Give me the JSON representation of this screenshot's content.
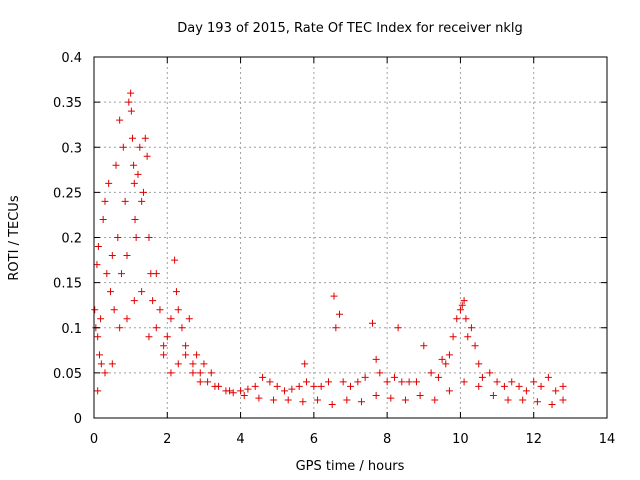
{
  "chart_data": {
    "type": "scatter",
    "title": "Day 193 of 2015, Rate Of TEC Index for receiver nklg",
    "xlabel": "GPS time / hours",
    "ylabel": "ROTI / TECUs",
    "xlim": [
      0,
      14
    ],
    "ylim": [
      0,
      0.4
    ],
    "x_ticks": [
      0,
      2,
      4,
      6,
      8,
      10,
      12,
      14
    ],
    "x_tick_labels": [
      "0",
      "2",
      "4",
      "6",
      "8",
      "10",
      "12",
      "14"
    ],
    "y_ticks": [
      0,
      0.05,
      0.1,
      0.15,
      0.2,
      0.25,
      0.3,
      0.35,
      0.4
    ],
    "y_tick_labels": [
      "0",
      "0.05",
      "0.1",
      "0.15",
      "0.2",
      "0.25",
      "0.3",
      "0.35",
      "0.4"
    ],
    "grid": true,
    "marker": "plus",
    "color": "#e00000",
    "series": [
      {
        "name": "ROTI",
        "x": [
          0.02,
          0.05,
          0.08,
          0.1,
          0.12,
          0.15,
          0.18,
          0.2,
          0.25,
          0.3,
          0.35,
          0.4,
          0.45,
          0.5,
          0.55,
          0.6,
          0.65,
          0.7,
          0.75,
          0.8,
          0.85,
          0.9,
          0.95,
          1.0,
          1.02,
          1.05,
          1.08,
          1.1,
          1.12,
          1.15,
          1.2,
          1.25,
          1.3,
          1.35,
          1.4,
          1.45,
          1.5,
          1.55,
          1.6,
          1.7,
          1.8,
          1.9,
          2.0,
          2.1,
          2.2,
          2.25,
          2.3,
          2.4,
          2.5,
          2.6,
          2.7,
          2.8,
          2.9,
          3.0,
          3.1,
          3.2,
          3.4,
          3.6,
          3.8,
          4.0,
          4.2,
          4.4,
          4.6,
          4.8,
          5.0,
          5.2,
          5.4,
          5.6,
          5.75,
          5.8,
          6.0,
          6.2,
          6.4,
          6.55,
          6.6,
          6.7,
          6.8,
          7.0,
          7.2,
          7.4,
          7.6,
          7.7,
          7.8,
          8.0,
          8.2,
          8.3,
          8.4,
          8.6,
          8.8,
          9.0,
          9.2,
          9.4,
          9.5,
          9.6,
          9.7,
          9.8,
          9.9,
          10.0,
          10.05,
          10.1,
          10.15,
          10.2,
          10.3,
          10.4,
          10.5,
          10.6,
          10.8,
          11.0,
          11.2,
          11.4,
          11.6,
          11.8,
          12.0,
          12.2,
          12.4,
          12.6,
          12.8,
          0.1,
          0.3,
          0.5,
          0.7,
          0.9,
          1.1,
          1.3,
          1.5,
          1.7,
          1.9,
          2.1,
          2.3,
          2.5,
          2.7,
          2.9,
          3.3,
          3.7,
          4.1,
          4.5,
          4.9,
          5.3,
          5.7,
          6.1,
          6.5,
          6.9,
          7.3,
          7.7,
          8.1,
          8.5,
          8.9,
          9.3,
          9.7,
          10.1,
          10.5,
          10.9,
          11.3,
          11.7,
          12.1,
          12.5,
          12.8
        ],
        "y": [
          0.12,
          0.1,
          0.17,
          0.09,
          0.19,
          0.07,
          0.11,
          0.06,
          0.22,
          0.24,
          0.16,
          0.26,
          0.14,
          0.18,
          0.12,
          0.28,
          0.2,
          0.33,
          0.16,
          0.3,
          0.24,
          0.18,
          0.35,
          0.36,
          0.34,
          0.31,
          0.28,
          0.26,
          0.22,
          0.2,
          0.27,
          0.3,
          0.24,
          0.25,
          0.31,
          0.29,
          0.2,
          0.16,
          0.13,
          0.1,
          0.12,
          0.08,
          0.09,
          0.11,
          0.175,
          0.14,
          0.12,
          0.1,
          0.08,
          0.11,
          0.06,
          0.07,
          0.05,
          0.06,
          0.04,
          0.05,
          0.035,
          0.03,
          0.028,
          0.03,
          0.032,
          0.035,
          0.045,
          0.04,
          0.035,
          0.03,
          0.032,
          0.035,
          0.06,
          0.04,
          0.035,
          0.035,
          0.04,
          0.135,
          0.1,
          0.115,
          0.04,
          0.035,
          0.04,
          0.045,
          0.105,
          0.065,
          0.05,
          0.04,
          0.045,
          0.1,
          0.04,
          0.04,
          0.04,
          0.08,
          0.05,
          0.045,
          0.065,
          0.06,
          0.07,
          0.09,
          0.11,
          0.12,
          0.125,
          0.13,
          0.11,
          0.09,
          0.1,
          0.08,
          0.06,
          0.045,
          0.05,
          0.04,
          0.035,
          0.04,
          0.035,
          0.03,
          0.04,
          0.035,
          0.045,
          0.03,
          0.035,
          0.03,
          0.05,
          0.06,
          0.1,
          0.11,
          0.13,
          0.14,
          0.09,
          0.16,
          0.07,
          0.05,
          0.06,
          0.07,
          0.05,
          0.04,
          0.035,
          0.03,
          0.025,
          0.022,
          0.02,
          0.02,
          0.018,
          0.02,
          0.015,
          0.02,
          0.018,
          0.025,
          0.022,
          0.02,
          0.025,
          0.02,
          0.03,
          0.04,
          0.035,
          0.025,
          0.02,
          0.02,
          0.018,
          0.015,
          0.02
        ]
      }
    ]
  }
}
